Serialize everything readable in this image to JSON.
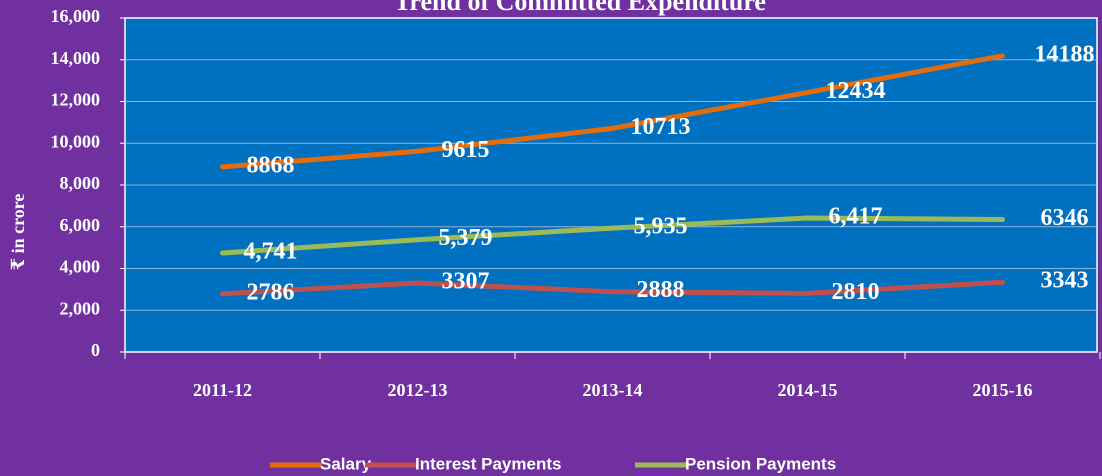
{
  "chart_data": {
    "type": "line",
    "title": "Trend of Committed Expenditure",
    "ylabel": "₹ in crore",
    "categories": [
      "2011-12",
      "2012-13",
      "2013-14",
      "2014-15",
      "2015-16"
    ],
    "series": [
      {
        "name": "Salary",
        "color": "#e46c0a",
        "values": [
          8868,
          9615,
          10713,
          12434,
          14188
        ]
      },
      {
        "name": "Interest Payments",
        "color": "#c0504d",
        "values": [
          2786,
          3307,
          2888,
          2810,
          3343
        ]
      },
      {
        "name": "Pension Payments",
        "color": "#9bbb59",
        "values": [
          4741,
          5379,
          5935,
          6417,
          6346
        ],
        "value_labels": [
          "4,741",
          "5,379",
          "5,935",
          "6,417",
          "6346"
        ]
      }
    ],
    "ylim": [
      0,
      16000
    ],
    "yticks": [
      0,
      {
        "value": 2000,
        "label": "2,000"
      },
      {
        "value": 4000,
        "label": "4,000"
      },
      {
        "value": 6000,
        "label": "6,000"
      },
      {
        "value": 8000,
        "label": "8,000"
      },
      {
        "value": 10000,
        "label": "10,000"
      },
      {
        "value": 12000,
        "label": "12,000"
      },
      {
        "value": 14000,
        "label": "14,000"
      },
      {
        "value": 16000,
        "label": "16,000"
      }
    ],
    "grid": true,
    "legend": "bottom"
  }
}
